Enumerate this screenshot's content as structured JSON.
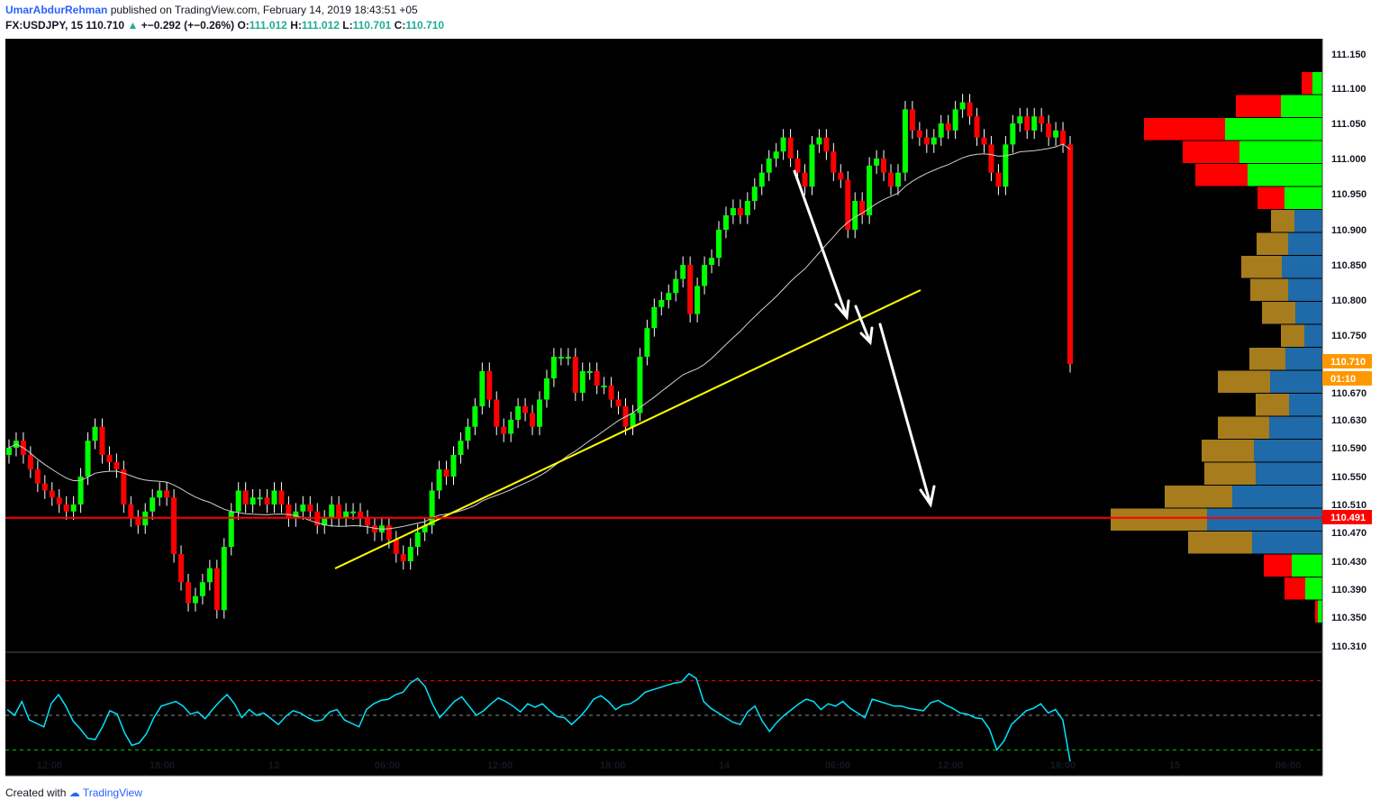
{
  "header": {
    "author": "UmarAbdurRehman",
    "published_text": "published on TradingView.com, February 14, 2019 18:43:51 +05",
    "symbol": "FX:USDJPY, 15",
    "last": "110.710",
    "change": "+−0.292 (+−0.26%)",
    "o_label": "O:",
    "o_value": "111.012",
    "h_label": "H:",
    "h_value": "111.012",
    "l_label": "L:",
    "l_value": "110.701",
    "c_label": "C:",
    "c_value": "110.710"
  },
  "footer": {
    "created_with": "Created with",
    "brand": "TradingView"
  },
  "colors": {
    "up": "#00ff00",
    "down": "#ff0000",
    "background": "#000000",
    "sma": "#d0d0d0",
    "trendline": "#ffff00",
    "support": "#ff0000",
    "rsi": "#00e5ff",
    "vp_sell": "#a67c1c",
    "vp_buy": "#1f6aa8",
    "vp_up": "#00ff00",
    "vp_down": "#ff0000"
  },
  "chart_data": {
    "type": "candlestick",
    "price_axis": {
      "ticks": [
        "111.150",
        "111.100",
        "111.050",
        "111.000",
        "110.950",
        "110.900",
        "110.850",
        "110.800",
        "110.750",
        "110.670",
        "110.630",
        "110.590",
        "110.550",
        "110.510",
        "110.470",
        "110.430",
        "110.390",
        "110.350",
        "110.310"
      ],
      "range": [
        110.31,
        111.15
      ]
    },
    "time_axis": {
      "ticks": [
        "12:00",
        "18:00",
        "13",
        "06:00",
        "12:00",
        "18:00",
        "14",
        "06:00",
        "12:00",
        "18:00",
        "15",
        "06:00"
      ]
    },
    "last_price_tag": "110.710",
    "countdown_tag": "01:10",
    "support_level": "110.491",
    "support_tag": "110.491",
    "closes": [
      110.59,
      110.6,
      110.58,
      110.56,
      110.54,
      110.53,
      110.52,
      110.51,
      110.5,
      110.51,
      110.55,
      110.6,
      110.62,
      110.58,
      110.57,
      110.56,
      110.51,
      110.49,
      110.48,
      110.5,
      110.52,
      110.53,
      110.52,
      110.44,
      110.4,
      110.37,
      110.38,
      110.4,
      110.42,
      110.36,
      110.45,
      110.5,
      110.53,
      110.51,
      110.52,
      110.52,
      110.51,
      110.53,
      110.51,
      110.49,
      110.5,
      110.51,
      110.5,
      110.48,
      110.49,
      110.51,
      110.49,
      110.5,
      110.5,
      110.49,
      110.48,
      110.47,
      110.48,
      110.46,
      110.44,
      110.43,
      110.45,
      110.47,
      110.48,
      110.53,
      110.56,
      110.55,
      110.58,
      110.6,
      110.62,
      110.65,
      110.7,
      110.66,
      110.62,
      110.61,
      110.63,
      110.65,
      110.64,
      110.62,
      110.66,
      110.69,
      110.72,
      110.72,
      110.72,
      110.67,
      110.7,
      110.7,
      110.68,
      110.68,
      110.66,
      110.65,
      110.62,
      110.64,
      110.72,
      110.76,
      110.79,
      110.8,
      110.81,
      110.83,
      110.85,
      110.78,
      110.82,
      110.85,
      110.86,
      110.9,
      110.92,
      110.93,
      110.92,
      110.94,
      110.96,
      110.98,
      111.0,
      111.01,
      111.03,
      111.0,
      110.98,
      110.96,
      111.02,
      111.03,
      111.01,
      110.98,
      110.97,
      110.9,
      110.94,
      110.92,
      110.99,
      111.0,
      110.98,
      110.96,
      110.98,
      111.07,
      111.04,
      111.03,
      111.02,
      111.03,
      111.05,
      111.04,
      111.07,
      111.08,
      111.06,
      111.03,
      111.02,
      110.98,
      110.96,
      111.02,
      111.05,
      111.06,
      111.04,
      111.06,
      111.05,
      111.03,
      111.04,
      111.02,
      110.71
    ],
    "sma_period_note": "",
    "rsi": {
      "levels": [
        "75.0000",
        "50.0000",
        "25.0000"
      ],
      "values": [
        55,
        50,
        62,
        46,
        43,
        40,
        60,
        68,
        58,
        45,
        38,
        30,
        29,
        40,
        54,
        51,
        35,
        24,
        26,
        34,
        48,
        58,
        60,
        62,
        58,
        51,
        53,
        47,
        55,
        62,
        68,
        60,
        48,
        55,
        50,
        52,
        47,
        42,
        49,
        54,
        52,
        48,
        45,
        46,
        53,
        55,
        46,
        43,
        40,
        55,
        60,
        63,
        64,
        68,
        70,
        78,
        82,
        75,
        60,
        48,
        55,
        62,
        66,
        58,
        50,
        54,
        60,
        65,
        62,
        58,
        53,
        60,
        57,
        60,
        54,
        49,
        48,
        42,
        48,
        55,
        64,
        67,
        62,
        55,
        59,
        60,
        64,
        70,
        72,
        74,
        76,
        78,
        79,
        86,
        82,
        62,
        56,
        52,
        48,
        44,
        42,
        53,
        58,
        45,
        36,
        44,
        50,
        55,
        60,
        64,
        62,
        55,
        60,
        58,
        62,
        56,
        52,
        48,
        64,
        62,
        60,
        58,
        58,
        56,
        55,
        54,
        61,
        63,
        59,
        56,
        52,
        51,
        48,
        47,
        38,
        20,
        28,
        42,
        48,
        54,
        56,
        60,
        52,
        55,
        46,
        10
      ]
    }
  }
}
